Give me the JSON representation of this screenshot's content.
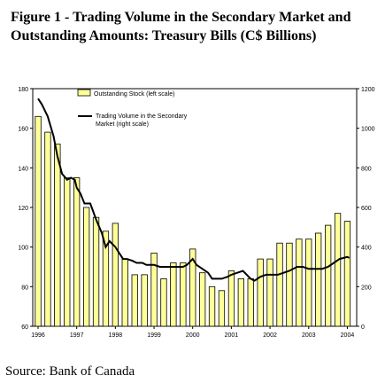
{
  "figure": {
    "title": "Figure 1 - Trading Volume in the Secondary Market and Outstanding Amounts:  Treasury Bills (C$ Billions)",
    "source": "Source: Bank of Canada"
  },
  "chart_data": {
    "type": "bar+line",
    "x_tick_labels": [
      "1996",
      "1997",
      "1998",
      "1999",
      "2000",
      "2001",
      "2002",
      "2003",
      "2004"
    ],
    "left_axis": {
      "ticks": [
        60,
        80,
        100,
        120,
        140,
        160,
        180
      ],
      "range": [
        60,
        180
      ]
    },
    "right_axis": {
      "ticks": [
        0,
        200,
        400,
        600,
        800,
        1000,
        1200
      ],
      "range": [
        0,
        1200
      ]
    },
    "legend_position": "top-left",
    "colors": {
      "bars": "#ffff99",
      "bar_border": "#000000",
      "line": "#000000"
    },
    "series": [
      {
        "name": "Outstanding Stock (left scale)",
        "kind": "bar",
        "axis": "left",
        "x": [
          1996.0,
          1996.25,
          1996.5,
          1996.75,
          1997.0,
          1997.25,
          1997.5,
          1997.75,
          1998.0,
          1998.25,
          1998.5,
          1998.75,
          1999.0,
          1999.25,
          1999.5,
          1999.75,
          2000.0,
          2000.25,
          2000.5,
          2000.75,
          2001.0,
          2001.25,
          2001.5,
          2001.75,
          2002.0,
          2002.25,
          2002.5,
          2002.75,
          2003.0,
          2003.25,
          2003.5,
          2003.75,
          2004.0
        ],
        "values": [
          166,
          158,
          152,
          135,
          135,
          120,
          115,
          108,
          112,
          94,
          86,
          86,
          97,
          84,
          92,
          92,
          99,
          87,
          80,
          78,
          88,
          84,
          84,
          94,
          94,
          102,
          102,
          104,
          104,
          107,
          111,
          117,
          113
        ]
      },
      {
        "name": "Trading Volume in the Secondary Market (right scale)",
        "kind": "line",
        "axis": "right",
        "x": [
          1996.0,
          1996.1,
          1996.25,
          1996.4,
          1996.5,
          1996.62,
          1996.75,
          1996.85,
          1996.95,
          1997.0,
          1997.1,
          1997.2,
          1997.35,
          1997.5,
          1997.65,
          1997.75,
          1997.85,
          1998.0,
          1998.1,
          1998.2,
          1998.3,
          1998.45,
          1998.55,
          1998.7,
          1998.8,
          1998.9,
          1999.0,
          1999.15,
          1999.3,
          1999.45,
          1999.6,
          1999.75,
          1999.85,
          2000.0,
          2000.1,
          2000.25,
          2000.4,
          2000.5,
          2000.6,
          2000.75,
          2000.9,
          2001.0,
          2001.15,
          2001.3,
          2001.5,
          2001.6,
          2001.75,
          2001.9,
          2002.0,
          2002.2,
          2002.35,
          2002.5,
          2002.7,
          2002.85,
          2003.0,
          2003.2,
          2003.35,
          2003.5,
          2003.65,
          2003.8,
          2004.0,
          2004.05
        ],
        "values": [
          1150,
          1120,
          1060,
          960,
          860,
          770,
          740,
          750,
          740,
          700,
          670,
          620,
          620,
          540,
          470,
          400,
          430,
          400,
          370,
          340,
          340,
          330,
          320,
          320,
          310,
          310,
          310,
          300,
          300,
          300,
          300,
          300,
          310,
          340,
          310,
          290,
          270,
          240,
          240,
          240,
          250,
          260,
          270,
          280,
          240,
          230,
          250,
          260,
          260,
          260,
          270,
          280,
          300,
          300,
          290,
          290,
          290,
          300,
          320,
          340,
          350,
          345
        ]
      }
    ]
  }
}
